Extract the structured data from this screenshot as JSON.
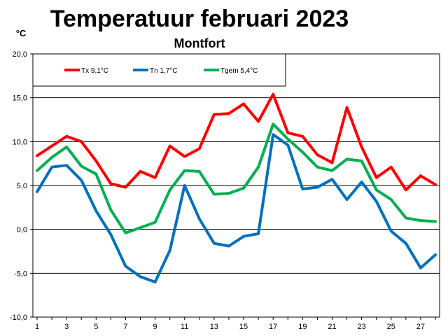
{
  "chart_data": {
    "type": "line",
    "title": "Temperatuur februari 2023",
    "subtitle": "Montfort",
    "ylabel": "°C",
    "ylim": [
      -10,
      20
    ],
    "ytick_values": [
      -10,
      -5,
      0,
      5,
      10,
      15,
      20
    ],
    "ytick_labels": [
      "-10,0",
      "-5,0",
      "0,0",
      "5,0",
      "10,0",
      "15,0",
      "20,0"
    ],
    "xlim": [
      1,
      28
    ],
    "xtick_labels": [
      "1",
      "3",
      "5",
      "7",
      "9",
      "11",
      "13",
      "15",
      "17",
      "19",
      "21",
      "23",
      "25",
      "27"
    ],
    "grid": true,
    "legend_position": "top",
    "x": [
      1,
      2,
      3,
      4,
      5,
      6,
      7,
      8,
      9,
      10,
      11,
      12,
      13,
      14,
      15,
      16,
      17,
      18,
      19,
      20,
      21,
      22,
      23,
      24,
      25,
      26,
      27,
      28
    ],
    "series": [
      {
        "name": "Tx 9,1°C",
        "color": "#ff0000",
        "values": [
          8.4,
          9.5,
          10.6,
          10.0,
          7.8,
          5.2,
          4.8,
          6.6,
          5.9,
          9.5,
          8.3,
          9.2,
          13.1,
          13.2,
          14.3,
          12.3,
          15.4,
          11.0,
          10.6,
          8.5,
          7.6,
          13.9,
          9.4,
          5.9,
          7.1,
          4.5,
          6.1,
          5.1
        ]
      },
      {
        "name": "Tn 1,7°C",
        "color": "#0070c0",
        "values": [
          4.3,
          7.1,
          7.3,
          5.6,
          2.1,
          -0.6,
          -4.2,
          -5.4,
          -6.0,
          -2.4,
          5.0,
          1.2,
          -1.6,
          -1.9,
          -0.8,
          -0.5,
          10.8,
          9.6,
          4.6,
          4.8,
          5.7,
          3.4,
          5.4,
          3.2,
          -0.2,
          -1.6,
          -4.4,
          -2.9
        ]
      },
      {
        "name": "Tgem 5,4°C",
        "color": "#00b050",
        "values": [
          6.7,
          8.2,
          9.4,
          7.2,
          6.3,
          2.2,
          -0.4,
          0.2,
          0.8,
          4.5,
          6.7,
          6.6,
          4.0,
          4.1,
          4.7,
          7.1,
          12.0,
          10.3,
          8.8,
          7.1,
          6.7,
          8.0,
          7.8,
          4.5,
          3.4,
          1.3,
          1.0,
          0.9
        ]
      }
    ]
  }
}
